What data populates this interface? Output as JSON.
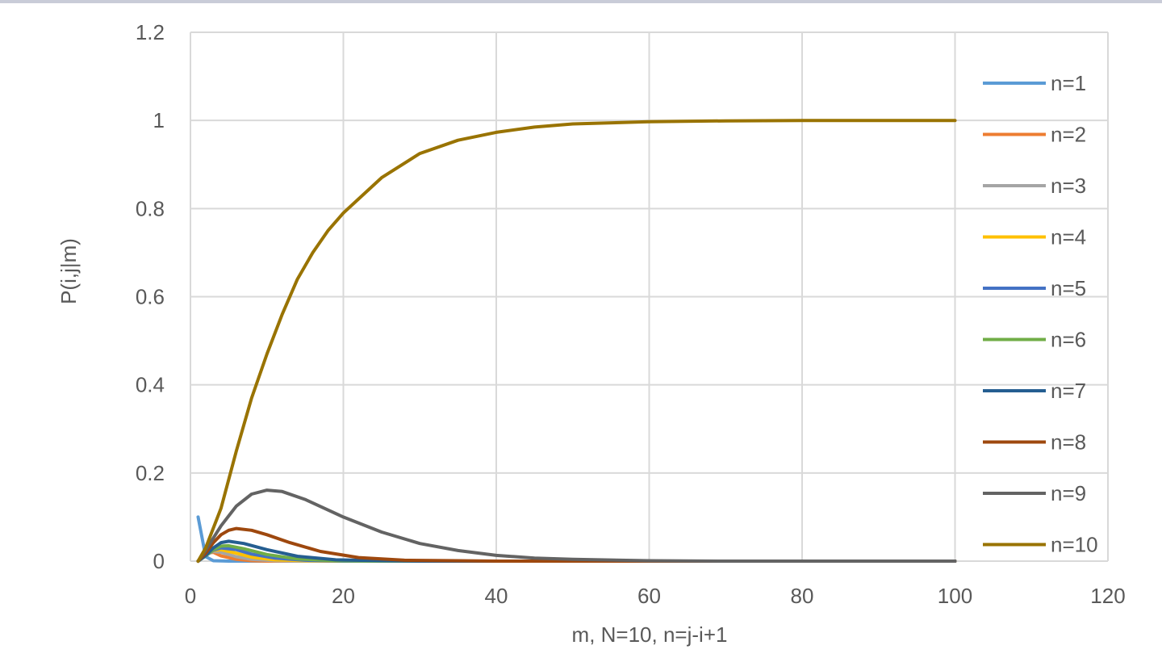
{
  "chart_data": {
    "type": "line",
    "title": "",
    "xlabel": "m, N=10, n=j-i+1",
    "ylabel": "P(i,j|m)",
    "xlim": [
      0,
      120
    ],
    "ylim": [
      0,
      1.2
    ],
    "x_ticks": [
      0,
      20,
      40,
      60,
      80,
      100,
      120
    ],
    "y_ticks": [
      0,
      0.2,
      0.4,
      0.6,
      0.8,
      1,
      1.2
    ],
    "x_tick_labels": [
      "0",
      "20",
      "40",
      "60",
      "80",
      "100",
      "120"
    ],
    "y_tick_labels": [
      "0",
      "0.2",
      "0.4",
      "0.6",
      "0.8",
      "1",
      "1.2"
    ],
    "grid": true,
    "legend_position": "right",
    "series": [
      {
        "name": "n=1",
        "color": "#5b9bd5",
        "points": [
          [
            1,
            0.1
          ],
          [
            2,
            0.01
          ],
          [
            3,
            0.001
          ],
          [
            5,
            0
          ],
          [
            100,
            0
          ]
        ]
      },
      {
        "name": "n=2",
        "color": "#ed7d31",
        "points": [
          [
            1,
            0
          ],
          [
            2,
            0.018
          ],
          [
            3,
            0.02
          ],
          [
            4,
            0.012
          ],
          [
            6,
            0.004
          ],
          [
            8,
            0.001
          ],
          [
            10,
            0
          ],
          [
            100,
            0
          ]
        ]
      },
      {
        "name": "n=3",
        "color": "#a5a5a5",
        "points": [
          [
            1,
            0
          ],
          [
            2,
            0.015
          ],
          [
            3,
            0.022
          ],
          [
            4,
            0.02
          ],
          [
            6,
            0.01
          ],
          [
            8,
            0.004
          ],
          [
            11,
            0.001
          ],
          [
            14,
            0
          ],
          [
            100,
            0
          ]
        ]
      },
      {
        "name": "n=4",
        "color": "#ffc000",
        "points": [
          [
            1,
            0
          ],
          [
            2,
            0.013
          ],
          [
            3,
            0.024
          ],
          [
            4,
            0.026
          ],
          [
            6,
            0.018
          ],
          [
            8,
            0.009
          ],
          [
            11,
            0.003
          ],
          [
            15,
            0.001
          ],
          [
            18,
            0
          ],
          [
            100,
            0
          ]
        ]
      },
      {
        "name": "n=5",
        "color": "#4472c4",
        "points": [
          [
            1,
            0
          ],
          [
            2,
            0.012
          ],
          [
            3,
            0.025
          ],
          [
            4,
            0.03
          ],
          [
            6,
            0.026
          ],
          [
            8,
            0.016
          ],
          [
            11,
            0.007
          ],
          [
            15,
            0.002
          ],
          [
            20,
            0
          ],
          [
            100,
            0
          ]
        ]
      },
      {
        "name": "n=6",
        "color": "#70ad47",
        "points": [
          [
            1,
            0
          ],
          [
            2,
            0.012
          ],
          [
            3,
            0.026
          ],
          [
            4,
            0.034
          ],
          [
            5,
            0.035
          ],
          [
            7,
            0.028
          ],
          [
            10,
            0.015
          ],
          [
            14,
            0.005
          ],
          [
            19,
            0.001
          ],
          [
            24,
            0
          ],
          [
            100,
            0
          ]
        ]
      },
      {
        "name": "n=7",
        "color": "#255e91",
        "points": [
          [
            1,
            0
          ],
          [
            2,
            0.013
          ],
          [
            3,
            0.03
          ],
          [
            4,
            0.042
          ],
          [
            5,
            0.045
          ],
          [
            7,
            0.04
          ],
          [
            10,
            0.026
          ],
          [
            14,
            0.011
          ],
          [
            19,
            0.003
          ],
          [
            25,
            0.001
          ],
          [
            30,
            0
          ],
          [
            100,
            0
          ]
        ]
      },
      {
        "name": "n=8",
        "color": "#9e480e",
        "points": [
          [
            1,
            0
          ],
          [
            2,
            0.018
          ],
          [
            3,
            0.042
          ],
          [
            4,
            0.06
          ],
          [
            5,
            0.07
          ],
          [
            6,
            0.074
          ],
          [
            8,
            0.07
          ],
          [
            10,
            0.06
          ],
          [
            13,
            0.042
          ],
          [
            17,
            0.022
          ],
          [
            22,
            0.008
          ],
          [
            28,
            0.002
          ],
          [
            35,
            0.001
          ],
          [
            40,
            0
          ],
          [
            100,
            0
          ]
        ]
      },
      {
        "name": "n=9",
        "color": "#636363",
        "points": [
          [
            1,
            0
          ],
          [
            2,
            0.025
          ],
          [
            4,
            0.08
          ],
          [
            6,
            0.125
          ],
          [
            8,
            0.152
          ],
          [
            10,
            0.161
          ],
          [
            12,
            0.158
          ],
          [
            15,
            0.14
          ],
          [
            20,
            0.1
          ],
          [
            25,
            0.066
          ],
          [
            30,
            0.04
          ],
          [
            35,
            0.024
          ],
          [
            40,
            0.013
          ],
          [
            45,
            0.007
          ],
          [
            50,
            0.004
          ],
          [
            60,
            0.001
          ],
          [
            70,
            0
          ],
          [
            100,
            0
          ]
        ]
      },
      {
        "name": "n=10",
        "color": "#997300",
        "points": [
          [
            1,
            0
          ],
          [
            2,
            0.03
          ],
          [
            4,
            0.12
          ],
          [
            6,
            0.25
          ],
          [
            8,
            0.37
          ],
          [
            10,
            0.47
          ],
          [
            12,
            0.56
          ],
          [
            14,
            0.64
          ],
          [
            16,
            0.7
          ],
          [
            18,
            0.75
          ],
          [
            20,
            0.79
          ],
          [
            25,
            0.87
          ],
          [
            30,
            0.925
          ],
          [
            35,
            0.955
          ],
          [
            40,
            0.973
          ],
          [
            45,
            0.985
          ],
          [
            50,
            0.992
          ],
          [
            60,
            0.997
          ],
          [
            70,
            0.999
          ],
          [
            80,
            1
          ],
          [
            100,
            1
          ]
        ]
      }
    ]
  }
}
